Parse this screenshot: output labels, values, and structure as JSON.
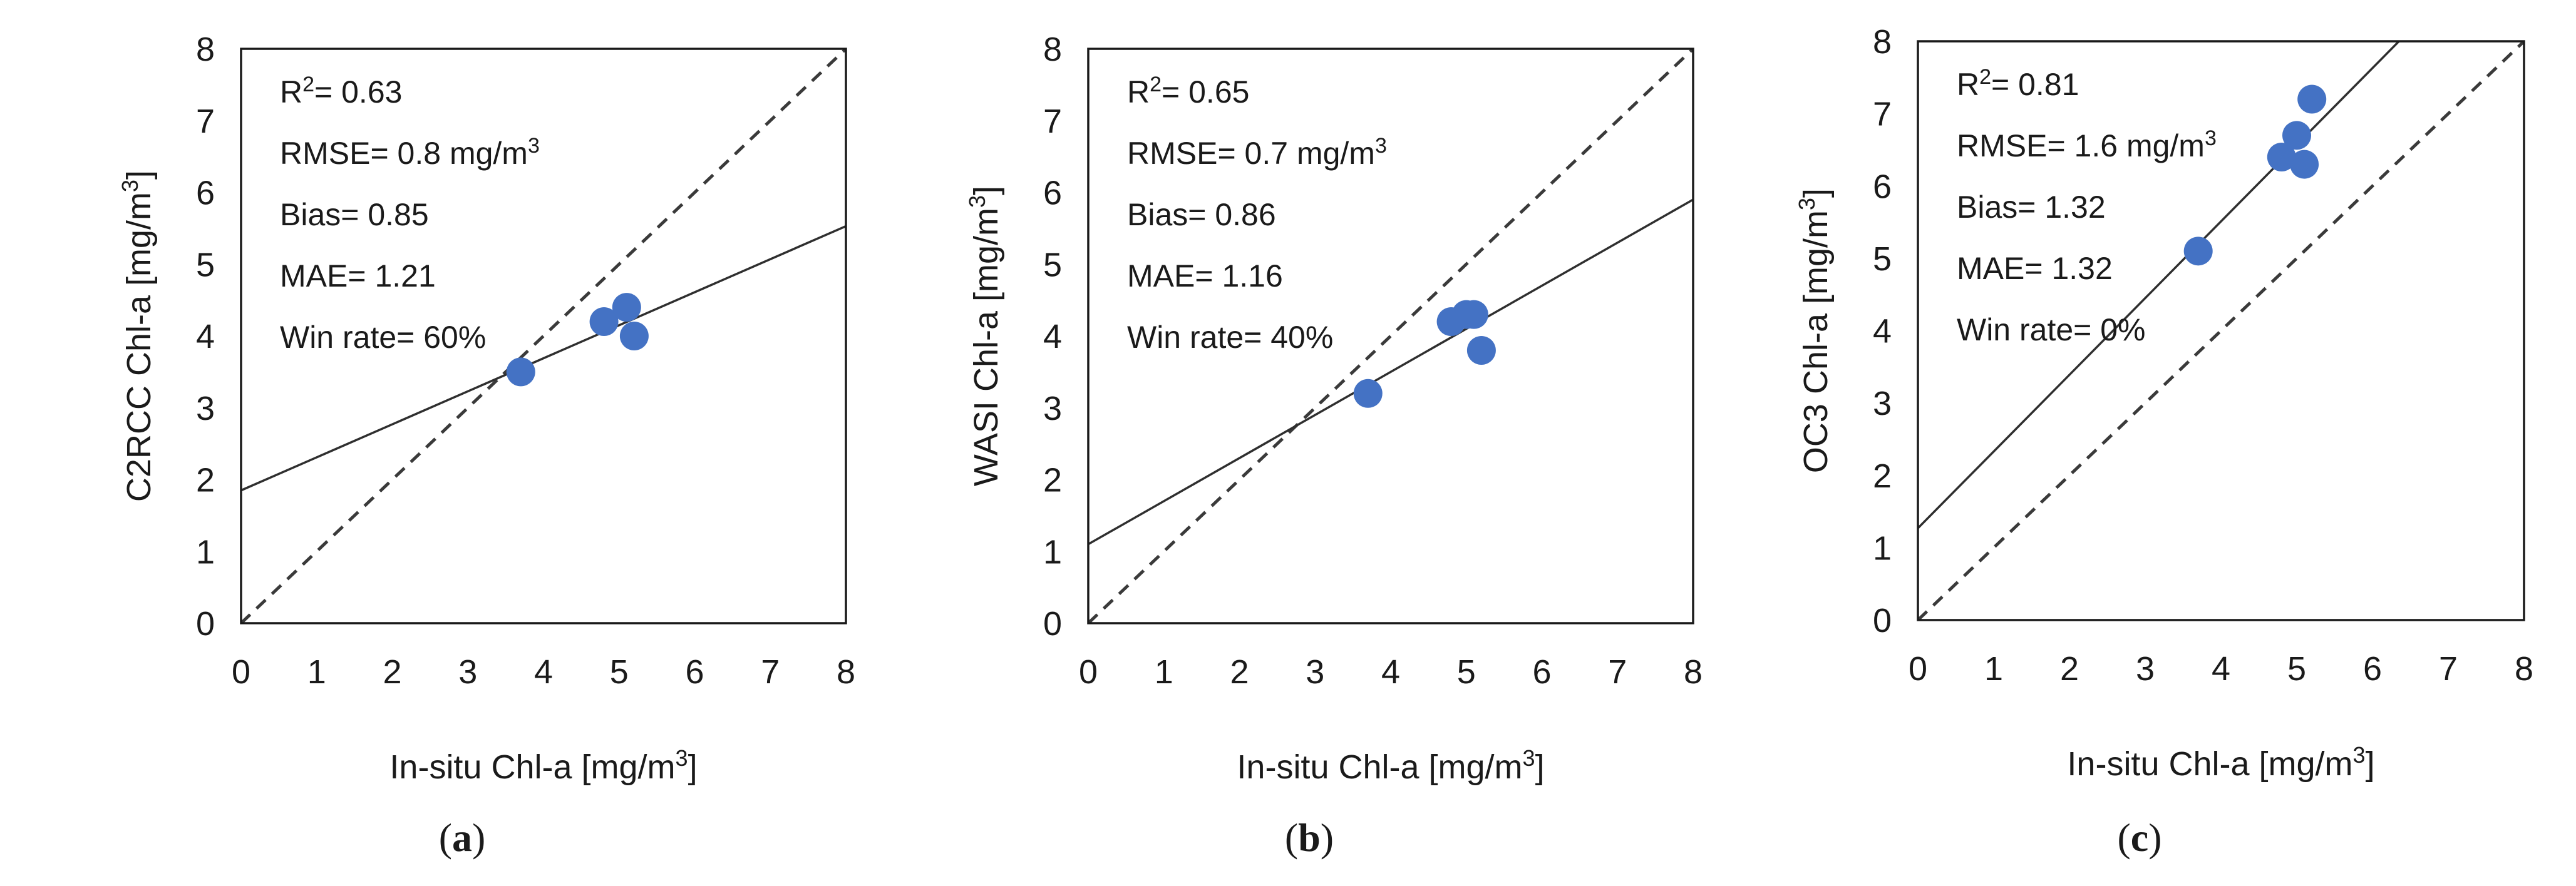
{
  "figure": {
    "panels": [
      {
        "caption_letter": "a",
        "stats": {
          "r2_prefix": "R",
          "r2_sup": "2",
          "r2_value": "= 0.63",
          "rmse_text": "RMSE= 0.8 mg/m",
          "rmse_sup": "3",
          "bias_text": "Bias= 0.85",
          "mae_text": "MAE= 1.21",
          "win_text": "Win rate= 60%"
        }
      },
      {
        "caption_letter": "b",
        "stats": {
          "r2_prefix": "R",
          "r2_sup": "2",
          "r2_value": "= 0.65",
          "rmse_text": "RMSE= 0.7 mg/m",
          "rmse_sup": "3",
          "bias_text": "Bias= 0.86",
          "mae_text": "MAE= 1.16",
          "win_text": "Win rate= 40%"
        }
      },
      {
        "caption_letter": "c",
        "stats": {
          "r2_prefix": "R",
          "r2_sup": "2",
          "r2_value": "= 0.81",
          "rmse_text": "RMSE= 1.6 mg/m",
          "rmse_sup": "3",
          "bias_text": "Bias= 1.32",
          "mae_text": "MAE= 1.32",
          "win_text": "Win rate= 0%"
        }
      }
    ]
  },
  "chart_data": [
    {
      "type": "scatter",
      "title": "",
      "xlabel": "In-situ Chl-a [mg/m3]",
      "xlabel_main": "In-situ Chl-a [mg/m",
      "xlabel_sup": "3",
      "xlabel_end": "]",
      "ylabel": "C2RCC Chl-a [mg/m3]",
      "ylabel_main": "C2RCC Chl-a [mg/m",
      "ylabel_sup": "3",
      "ylabel_end": "]",
      "xlim": [
        0,
        8
      ],
      "ylim": [
        0,
        8
      ],
      "x_ticks": [
        "0",
        "1",
        "2",
        "3",
        "4",
        "5",
        "6",
        "7",
        "8"
      ],
      "y_ticks": [
        "0",
        "1",
        "2",
        "3",
        "4",
        "5",
        "6",
        "7",
        "8"
      ],
      "points": {
        "x": [
          3.7,
          4.8,
          5.1,
          5.2
        ],
        "y": [
          3.5,
          4.2,
          4.4,
          4.0
        ]
      },
      "regression_line": {
        "intercept": 1.85,
        "slope": 0.46
      },
      "identity_line": true,
      "color": "#4472c4"
    },
    {
      "type": "scatter",
      "title": "",
      "xlabel": "In-situ Chl-a [mg/m3]",
      "xlabel_main": "In-situ Chl-a [mg/m",
      "xlabel_sup": "3",
      "xlabel_end": "]",
      "ylabel": "WASI Chl-a [mg/m3]",
      "ylabel_main": "WASI Chl-a [mg/m",
      "ylabel_sup": "3",
      "ylabel_end": "]",
      "xlim": [
        0,
        8
      ],
      "ylim": [
        0,
        8
      ],
      "x_ticks": [
        "0",
        "1",
        "2",
        "3",
        "4",
        "5",
        "6",
        "7",
        "8"
      ],
      "y_ticks": [
        "0",
        "1",
        "2",
        "3",
        "4",
        "5",
        "6",
        "7",
        "8"
      ],
      "points": {
        "x": [
          3.7,
          4.8,
          5.0,
          5.1,
          5.2
        ],
        "y": [
          3.2,
          4.2,
          4.3,
          4.3,
          3.8
        ]
      },
      "regression_line": {
        "intercept": 1.1,
        "slope": 0.6
      },
      "identity_line": true,
      "color": "#4472c4"
    },
    {
      "type": "scatter",
      "title": "",
      "xlabel": "In-situ Chl-a [mg/m3]",
      "xlabel_main": "In-situ Chl-a [mg/m",
      "xlabel_sup": "3",
      "xlabel_end": "]",
      "ylabel": "OC3 Chl-a [mg/m3]",
      "ylabel_main": "OC3 Chl-a [mg/m",
      "ylabel_sup": "3",
      "ylabel_end": "]",
      "xlim": [
        0,
        8
      ],
      "ylim": [
        0,
        8
      ],
      "x_ticks": [
        "0",
        "1",
        "2",
        "3",
        "4",
        "5",
        "6",
        "7",
        "8"
      ],
      "y_ticks": [
        "0",
        "1",
        "2",
        "3",
        "4",
        "5",
        "6",
        "7",
        "8"
      ],
      "points": {
        "x": [
          3.7,
          4.8,
          5.0,
          5.1,
          5.2
        ],
        "y": [
          5.1,
          6.4,
          6.7,
          6.3,
          7.2
        ]
      },
      "regression_line": {
        "intercept": 1.27,
        "slope": 1.06
      },
      "identity_line": true,
      "color": "#4472c4"
    }
  ]
}
